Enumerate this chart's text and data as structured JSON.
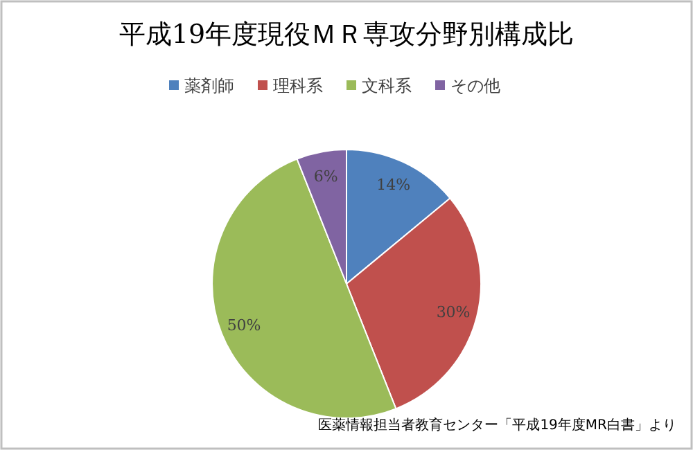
{
  "chart_data": {
    "type": "pie",
    "title": "平成19年度現役ＭＲ専攻分野別構成比",
    "categories": [
      "薬剤師",
      "理科系",
      "文科系",
      "その他"
    ],
    "values": [
      14,
      30,
      50,
      6
    ],
    "colors": [
      "#4f81bd",
      "#c0504d",
      "#9bbb59",
      "#8064a2"
    ],
    "value_labels": [
      "14%",
      "30%",
      "50%",
      "6%"
    ],
    "legend": "top",
    "annotations": [
      "医薬情報担当者教育センター「平成19年度MR白書」より"
    ]
  }
}
